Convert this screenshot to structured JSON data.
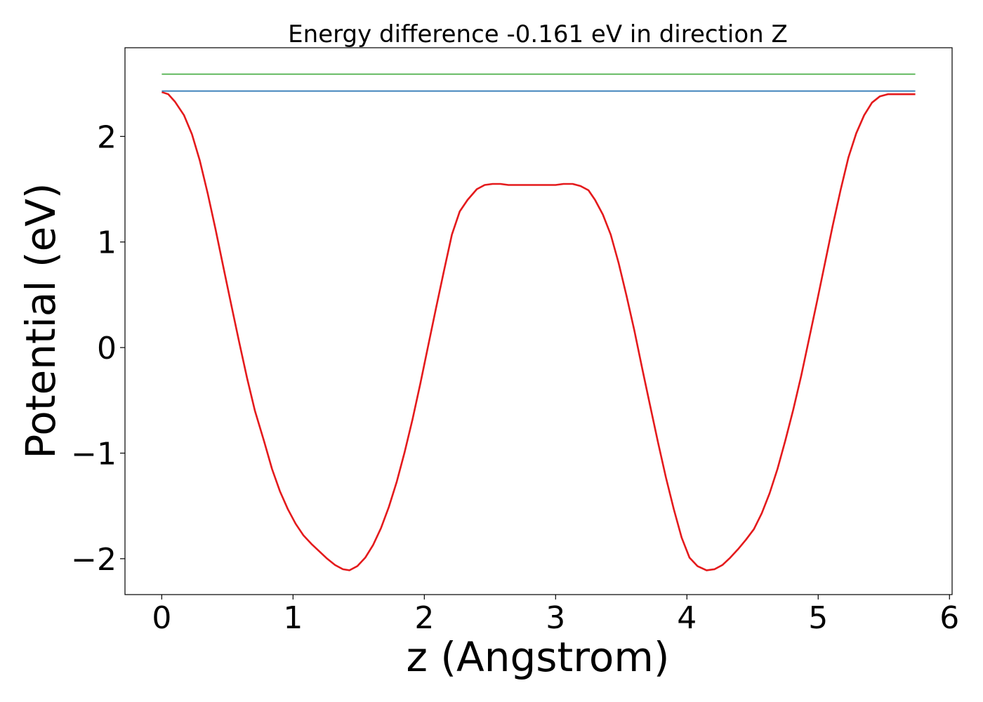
{
  "chart_data": {
    "type": "line",
    "title": "Energy difference -0.161 eV in direction Z",
    "xlabel": "z (Angstrom)",
    "ylabel": "Potential (eV)",
    "xlim": [
      -0.28,
      6.02
    ],
    "ylim": [
      -2.34,
      2.84
    ],
    "xticks": [
      0,
      1,
      2,
      3,
      4,
      5,
      6
    ],
    "xtick_labels": [
      "0",
      "1",
      "2",
      "3",
      "4",
      "5",
      "6"
    ],
    "yticks": [
      -2,
      -1,
      0,
      1,
      2
    ],
    "ytick_labels": [
      "−2",
      "−1",
      "0",
      "1",
      "2"
    ],
    "grid": false,
    "legend": "none",
    "series": [
      {
        "color": "#e41a1c",
        "x": [
          0.0,
          0.05,
          0.1,
          0.17,
          0.23,
          0.29,
          0.35,
          0.41,
          0.47,
          0.53,
          0.59,
          0.65,
          0.71,
          0.78,
          0.84,
          0.9,
          0.96,
          1.02,
          1.08,
          1.14,
          1.2,
          1.26,
          1.32,
          1.38,
          1.43,
          1.49,
          1.55,
          1.61,
          1.67,
          1.73,
          1.79,
          1.85,
          1.91,
          1.97,
          2.03,
          2.09,
          2.15,
          2.21,
          2.27,
          2.33,
          2.4,
          2.46,
          2.52,
          2.58,
          2.64,
          2.7,
          2.8,
          2.9,
          3.0,
          3.06,
          3.13,
          3.19,
          3.25,
          3.3,
          3.36,
          3.42,
          3.48,
          3.54,
          3.6,
          3.66,
          3.72,
          3.78,
          3.84,
          3.9,
          3.96,
          4.02,
          4.08,
          4.15,
          4.21,
          4.27,
          4.33,
          4.39,
          4.45,
          4.51,
          4.57,
          4.63,
          4.69,
          4.75,
          4.81,
          4.87,
          4.93,
          4.99,
          5.05,
          5.11,
          5.17,
          5.23,
          5.29,
          5.35,
          5.41,
          5.47,
          5.53,
          5.59,
          5.65,
          5.7,
          5.74
        ],
        "y": [
          2.42,
          2.4,
          2.33,
          2.2,
          2.02,
          1.77,
          1.46,
          1.12,
          0.76,
          0.4,
          0.05,
          -0.29,
          -0.6,
          -0.89,
          -1.15,
          -1.36,
          -1.53,
          -1.67,
          -1.78,
          -1.86,
          -1.93,
          -2.0,
          -2.06,
          -2.1,
          -2.11,
          -2.07,
          -1.99,
          -1.87,
          -1.71,
          -1.51,
          -1.27,
          -0.99,
          -0.68,
          -0.34,
          0.02,
          0.38,
          0.73,
          1.07,
          1.29,
          1.4,
          1.5,
          1.54,
          1.55,
          1.55,
          1.54,
          1.54,
          1.54,
          1.54,
          1.54,
          1.55,
          1.55,
          1.53,
          1.49,
          1.4,
          1.26,
          1.07,
          0.8,
          0.49,
          0.16,
          -0.2,
          -0.55,
          -0.9,
          -1.23,
          -1.53,
          -1.8,
          -1.99,
          -2.07,
          -2.11,
          -2.1,
          -2.06,
          -1.99,
          -1.91,
          -1.82,
          -1.72,
          -1.57,
          -1.38,
          -1.15,
          -0.88,
          -0.59,
          -0.27,
          0.08,
          0.43,
          0.79,
          1.15,
          1.49,
          1.8,
          2.03,
          2.2,
          2.32,
          2.38,
          2.4,
          2.4,
          2.4,
          2.4,
          2.4
        ]
      },
      {
        "color": "#377eb8",
        "x": [
          0.0,
          5.74
        ],
        "y": [
          2.43,
          2.43
        ]
      },
      {
        "color": "#4daf4a",
        "x": [
          0.0,
          5.74
        ],
        "y": [
          2.59,
          2.59
        ]
      }
    ]
  }
}
